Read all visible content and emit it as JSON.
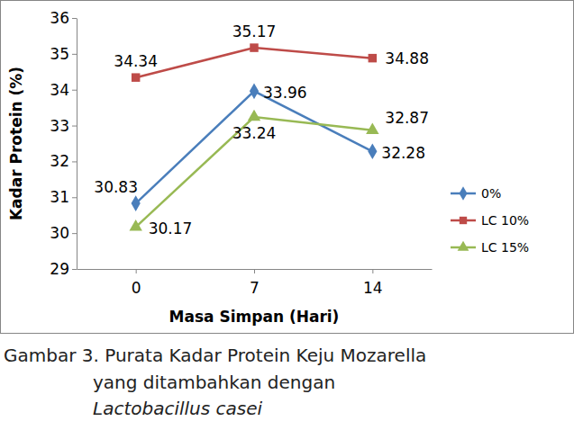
{
  "chart_data": {
    "type": "line",
    "title": [
      "Gambar 3. Purata Kadar Protein Keju Mozarella",
      "yang ditambahkan dengan",
      "Lactobacillus casei"
    ],
    "x_label": "Masa Simpan (Hari)",
    "y_label": "Kadar Protein (%)",
    "categories": [
      "0",
      "7",
      "14"
    ],
    "series": [
      {
        "name": "0%",
        "color": "#4a7ebb",
        "marker": "diamond",
        "values": [
          30.83,
          33.96,
          32.28
        ]
      },
      {
        "name": "LC 10%",
        "color": "#be4b48",
        "marker": "square",
        "values": [
          34.34,
          35.17,
          34.88
        ]
      },
      {
        "name": "LC 15%",
        "color": "#98b954",
        "marker": "triangle",
        "values": [
          30.17,
          33.24,
          32.87
        ]
      }
    ],
    "ylim": [
      29,
      36
    ],
    "yticks": [
      29,
      30,
      31,
      32,
      33,
      34,
      35,
      36
    ],
    "grid": false,
    "legend": "right",
    "data_labels": true
  }
}
